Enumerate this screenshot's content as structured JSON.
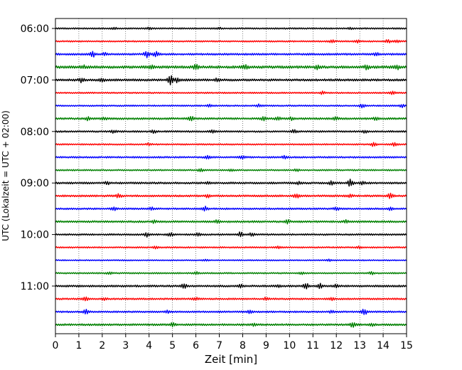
{
  "chart_data": {
    "type": "line",
    "title": "",
    "xlabel": "Zeit  [min]",
    "ylabel": "UTC (Lokalzeit = UTC + 02:00)",
    "xlim": [
      0,
      15
    ],
    "x_ticks": [
      "0",
      "1",
      "2",
      "3",
      "4",
      "5",
      "6",
      "7",
      "8",
      "9",
      "10",
      "11",
      "12",
      "13",
      "14",
      "15"
    ],
    "y_tick_labels": [
      "06:00",
      "07:00",
      "08:00",
      "09:00",
      "10:00",
      "11:00"
    ],
    "grid": "vertical-dotted",
    "start_time": "06:00",
    "trace_interval_min": 15,
    "trace_colors": [
      "#000000",
      "#ff0000",
      "#0000ff",
      "#008000"
    ],
    "traces": [
      {
        "time": "06:00",
        "color": "#000000",
        "base": 0.3,
        "events": [
          [
            2.5,
            0.35
          ],
          [
            4.0,
            0.4
          ],
          [
            7.0,
            0.3
          ],
          [
            12.6,
            0.3
          ]
        ]
      },
      {
        "time": "06:15",
        "color": "#ff0000",
        "base": 0.3,
        "events": [
          [
            11.8,
            0.5
          ],
          [
            12.9,
            0.45
          ],
          [
            14.2,
            0.6
          ],
          [
            14.6,
            0.5
          ]
        ]
      },
      {
        "time": "06:30",
        "color": "#0000ff",
        "base": 0.4,
        "events": [
          [
            1.6,
            1.0
          ],
          [
            2.1,
            0.5
          ],
          [
            3.9,
            1.4
          ],
          [
            4.3,
            1.1
          ],
          [
            13.7,
            0.5
          ]
        ]
      },
      {
        "time": "06:45",
        "color": "#008000",
        "base": 0.55,
        "events": [
          [
            1.2,
            0.5
          ],
          [
            4.1,
            0.5
          ],
          [
            6.0,
            0.8
          ],
          [
            8.1,
            0.9
          ],
          [
            11.2,
            0.9
          ],
          [
            13.3,
            0.7
          ],
          [
            14.6,
            0.7
          ]
        ]
      },
      {
        "time": "07:00",
        "color": "#000000",
        "base": 0.45,
        "events": [
          [
            1.1,
            0.8
          ],
          [
            2.0,
            0.6
          ],
          [
            4.9,
            2.0
          ],
          [
            5.2,
            0.8
          ],
          [
            6.9,
            0.6
          ]
        ]
      },
      {
        "time": "07:15",
        "color": "#ff0000",
        "base": 0.3,
        "events": [
          [
            11.4,
            0.5
          ],
          [
            14.4,
            0.6
          ]
        ]
      },
      {
        "time": "07:30",
        "color": "#0000ff",
        "base": 0.3,
        "events": [
          [
            6.6,
            0.5
          ],
          [
            8.7,
            0.5
          ],
          [
            13.1,
            0.7
          ],
          [
            14.8,
            0.6
          ]
        ]
      },
      {
        "time": "07:45",
        "color": "#008000",
        "base": 0.4,
        "events": [
          [
            1.4,
            0.6
          ],
          [
            2.1,
            0.5
          ],
          [
            5.8,
            0.7
          ],
          [
            8.9,
            0.6
          ],
          [
            9.5,
            0.6
          ],
          [
            10.1,
            0.5
          ],
          [
            12.0,
            0.6
          ],
          [
            13.7,
            0.5
          ]
        ]
      },
      {
        "time": "08:00",
        "color": "#000000",
        "base": 0.35,
        "events": [
          [
            2.5,
            0.5
          ],
          [
            4.2,
            0.5
          ],
          [
            6.7,
            0.5
          ],
          [
            10.2,
            0.7
          ],
          [
            13.2,
            0.5
          ]
        ]
      },
      {
        "time": "08:15",
        "color": "#ff0000",
        "base": 0.3,
        "events": [
          [
            4.0,
            0.5
          ],
          [
            13.6,
            0.8
          ],
          [
            14.5,
            0.7
          ]
        ]
      },
      {
        "time": "08:30",
        "color": "#0000ff",
        "base": 0.35,
        "events": [
          [
            6.5,
            0.5
          ],
          [
            8.0,
            0.7
          ],
          [
            9.8,
            0.6
          ]
        ]
      },
      {
        "time": "08:45",
        "color": "#008000",
        "base": 0.3,
        "events": [
          [
            6.2,
            0.7
          ],
          [
            7.5,
            0.5
          ],
          [
            10.3,
            0.5
          ]
        ]
      },
      {
        "time": "09:00",
        "color": "#000000",
        "base": 0.4,
        "events": [
          [
            2.2,
            0.5
          ],
          [
            6.5,
            0.4
          ],
          [
            10.4,
            0.5
          ],
          [
            11.8,
            0.8
          ],
          [
            12.6,
            1.3
          ],
          [
            13.1,
            0.7
          ]
        ]
      },
      {
        "time": "09:15",
        "color": "#ff0000",
        "base": 0.4,
        "events": [
          [
            2.7,
            0.7
          ],
          [
            6.5,
            0.5
          ],
          [
            10.3,
            0.8
          ],
          [
            12.6,
            0.6
          ],
          [
            14.3,
            1.0
          ]
        ]
      },
      {
        "time": "09:30",
        "color": "#0000ff",
        "base": 0.35,
        "events": [
          [
            2.5,
            0.7
          ],
          [
            4.1,
            0.5
          ],
          [
            6.4,
            0.8
          ],
          [
            12.0,
            0.6
          ],
          [
            14.3,
            0.5
          ]
        ]
      },
      {
        "time": "09:45",
        "color": "#008000",
        "base": 0.4,
        "events": [
          [
            4.2,
            0.5
          ],
          [
            6.9,
            0.5
          ],
          [
            9.9,
            0.7
          ],
          [
            12.4,
            0.5
          ]
        ]
      },
      {
        "time": "10:00",
        "color": "#000000",
        "base": 0.35,
        "events": [
          [
            3.9,
            0.8
          ],
          [
            4.9,
            0.7
          ],
          [
            6.1,
            0.6
          ],
          [
            7.9,
            0.9
          ],
          [
            8.4,
            0.7
          ]
        ]
      },
      {
        "time": "10:15",
        "color": "#ff0000",
        "base": 0.3,
        "events": [
          [
            4.3,
            0.4
          ],
          [
            9.5,
            0.3
          ],
          [
            13.0,
            0.4
          ]
        ]
      },
      {
        "time": "10:30",
        "color": "#0000ff",
        "base": 0.25,
        "events": [
          [
            6.4,
            0.3
          ],
          [
            11.7,
            0.3
          ]
        ]
      },
      {
        "time": "10:45",
        "color": "#008000",
        "base": 0.3,
        "events": [
          [
            2.3,
            0.4
          ],
          [
            6.0,
            0.5
          ],
          [
            10.5,
            0.4
          ],
          [
            13.5,
            0.5
          ]
        ]
      },
      {
        "time": "11:00",
        "color": "#000000",
        "base": 0.4,
        "events": [
          [
            5.5,
            0.8
          ],
          [
            7.9,
            0.7
          ],
          [
            9.5,
            0.5
          ],
          [
            10.7,
            1.0
          ],
          [
            11.3,
            0.9
          ],
          [
            12.0,
            0.6
          ]
        ]
      },
      {
        "time": "11:15",
        "color": "#ff0000",
        "base": 0.35,
        "events": [
          [
            1.3,
            0.8
          ],
          [
            2.1,
            0.5
          ],
          [
            6.0,
            0.5
          ],
          [
            9.0,
            0.5
          ],
          [
            11.8,
            0.4
          ]
        ]
      },
      {
        "time": "11:30",
        "color": "#0000ff",
        "base": 0.35,
        "events": [
          [
            1.3,
            0.9
          ],
          [
            4.8,
            0.5
          ],
          [
            8.3,
            0.5
          ],
          [
            11.8,
            0.4
          ],
          [
            13.2,
            1.3
          ]
        ]
      },
      {
        "time": "11:45",
        "color": "#008000",
        "base": 0.4,
        "events": [
          [
            5.0,
            0.6
          ],
          [
            8.5,
            0.6
          ],
          [
            12.7,
            1.1
          ],
          [
            13.5,
            0.6
          ]
        ]
      }
    ]
  }
}
